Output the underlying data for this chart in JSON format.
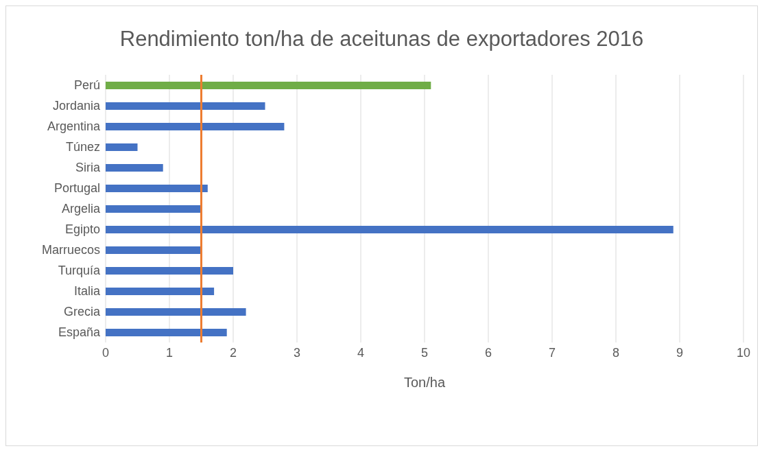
{
  "chart_data": {
    "type": "bar",
    "orientation": "horizontal",
    "title": "Rendimiento ton/ha de aceitunas de exportadores 2016",
    "xlabel": "Ton/ha",
    "categories": [
      "Perú",
      "Jordania",
      "Argentina",
      "Túnez",
      "Siria",
      "Portugal",
      "Argelia",
      "Egipto",
      "Marruecos",
      "Turquía",
      "Italia",
      "Grecia",
      "España"
    ],
    "values": [
      5.1,
      2.5,
      2.8,
      0.5,
      0.9,
      1.6,
      1.5,
      8.9,
      1.5,
      2.0,
      1.7,
      2.2,
      1.9
    ],
    "colors": [
      "#70ad47",
      "#4472c4",
      "#4472c4",
      "#4472c4",
      "#4472c4",
      "#4472c4",
      "#4472c4",
      "#4472c4",
      "#4472c4",
      "#4472c4",
      "#4472c4",
      "#4472c4",
      "#4472c4"
    ],
    "xlim": [
      0,
      10
    ],
    "xticks": [
      0,
      1,
      2,
      3,
      4,
      5,
      6,
      7,
      8,
      9,
      10
    ],
    "grid": "x",
    "ref_lines": [
      {
        "axis": "x",
        "value": 1.5,
        "color": "#ed7d31"
      }
    ]
  }
}
